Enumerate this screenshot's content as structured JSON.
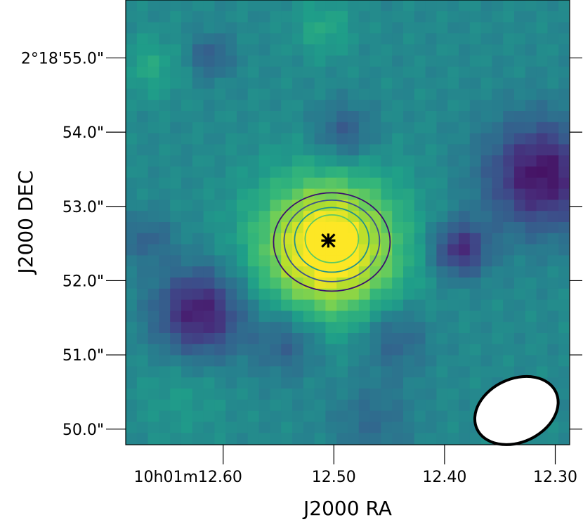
{
  "chart_data": {
    "type": "heatmap",
    "colormap": "viridis",
    "xlabel": "J2000 RA",
    "ylabel": "J2000 DEC",
    "x_ticks": [
      "10h01m12.60",
      "12.50",
      "12.40",
      "12.30"
    ],
    "y_ticks": [
      "2°18'55.0\"",
      "54.0\"",
      "53.0\"",
      "52.0\"",
      "51.0\"",
      "50.0\""
    ],
    "x_tick_values_sec": [
      12.6,
      12.5,
      12.4,
      12.3
    ],
    "y_tick_values_arcsec": [
      55.0,
      54.0,
      53.0,
      52.0,
      51.0,
      50.0
    ],
    "xlim_sec": [
      12.688,
      12.287
    ],
    "ylim_arcsec": [
      49.79,
      55.78
    ],
    "source_marker": {
      "ra_sec": 12.505,
      "dec_arcsec": 52.54,
      "symbol": "x-plus"
    },
    "contour_levels": 5,
    "contour_colors": [
      "#3b0f6f",
      "#3b528b",
      "#21918c",
      "#5ec962",
      "#fde725"
    ],
    "beam": {
      "ra_sec": 12.335,
      "dec_arcsec": 50.25,
      "fill": "#ffffff",
      "edge": "#000000"
    }
  }
}
